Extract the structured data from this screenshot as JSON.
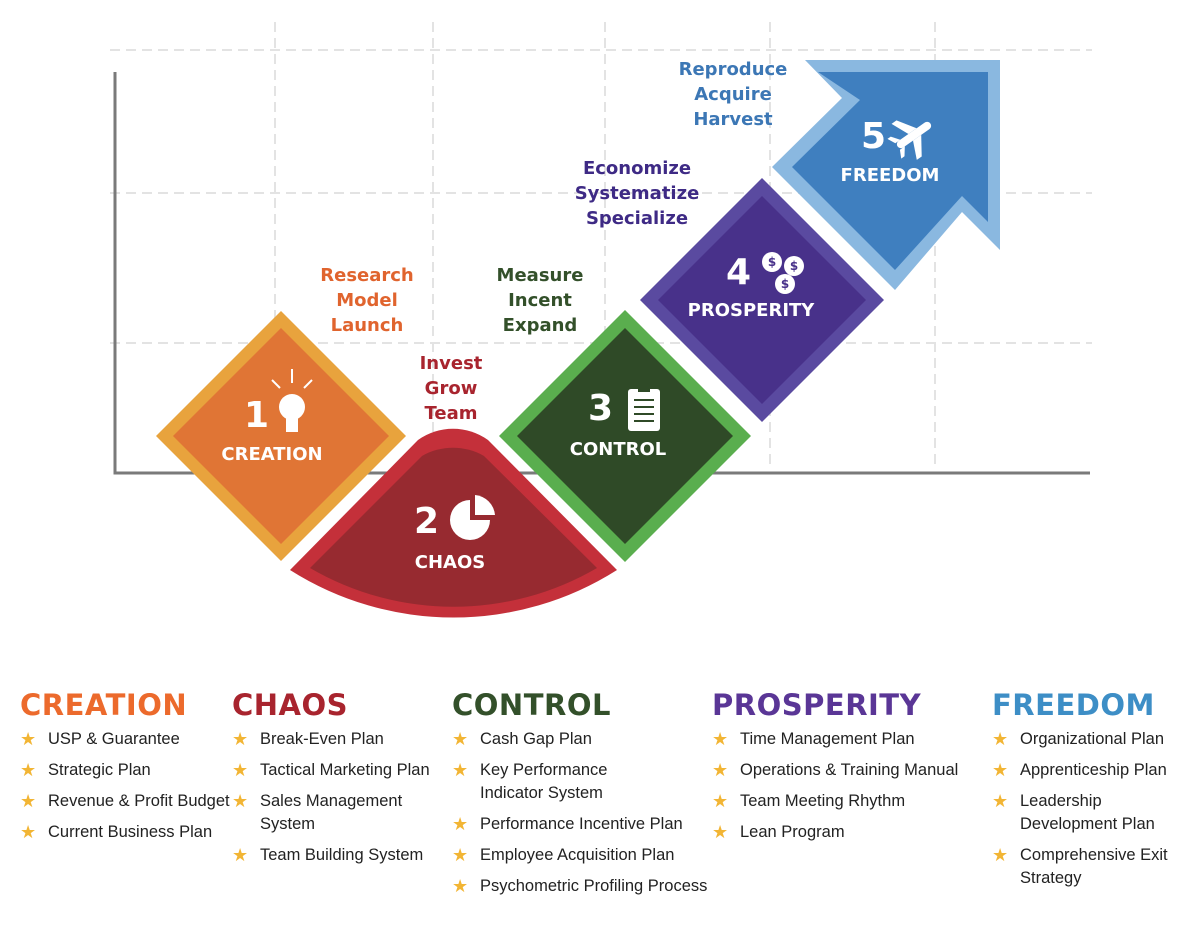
{
  "colors": {
    "creation": "#ec6a2c",
    "chaos": "#a8242e",
    "control": "#33502a",
    "prosperity": "#5a3696",
    "freedom": "#3d8ec6",
    "star": "#f2b534"
  },
  "diagram": {
    "stages": [
      {
        "number": "1",
        "name": "CREATION",
        "icon": "lightbulb-icon",
        "actions": [
          "Research",
          "Model",
          "Launch"
        ]
      },
      {
        "number": "2",
        "name": "CHAOS",
        "icon": "pie-chart-icon",
        "actions": [
          "Invest",
          "Grow",
          "Team"
        ]
      },
      {
        "number": "3",
        "name": "CONTROL",
        "icon": "checklist-icon",
        "actions": [
          "Measure",
          "Incent",
          "Expand"
        ]
      },
      {
        "number": "4",
        "name": "PROSPERITY",
        "icon": "coins-icon",
        "actions": [
          "Economize",
          "Systematize",
          "Specialize"
        ]
      },
      {
        "number": "5",
        "name": "FREEDOM",
        "icon": "airplane-icon",
        "actions": [
          "Reproduce",
          "Acquire",
          "Harvest"
        ]
      }
    ]
  },
  "lists": [
    {
      "title": "CREATION",
      "items": [
        "USP & Guarantee",
        "Strategic Plan",
        "Revenue & Profit Budget",
        "Current Business Plan"
      ]
    },
    {
      "title": "CHAOS",
      "items": [
        "Break-Even Plan",
        "Tactical Marketing Plan",
        "Sales Management System",
        "Team Building System"
      ]
    },
    {
      "title": "CONTROL",
      "items": [
        "Cash Gap Plan",
        "Key Performance Indicator System",
        "Performance Incentive Plan",
        "Employee Acquisition Plan",
        "Psychometric Profiling Process"
      ]
    },
    {
      "title": "PROSPERITY",
      "items": [
        "Time Management Plan",
        "Operations & Training Manual",
        "Team Meeting Rhythm",
        "Lean Program"
      ]
    },
    {
      "title": "FREEDOM",
      "items": [
        "Organizational Plan",
        "Apprenticeship Plan",
        "Leadership Development Plan",
        "Comprehensive Exit Strategy"
      ]
    }
  ]
}
